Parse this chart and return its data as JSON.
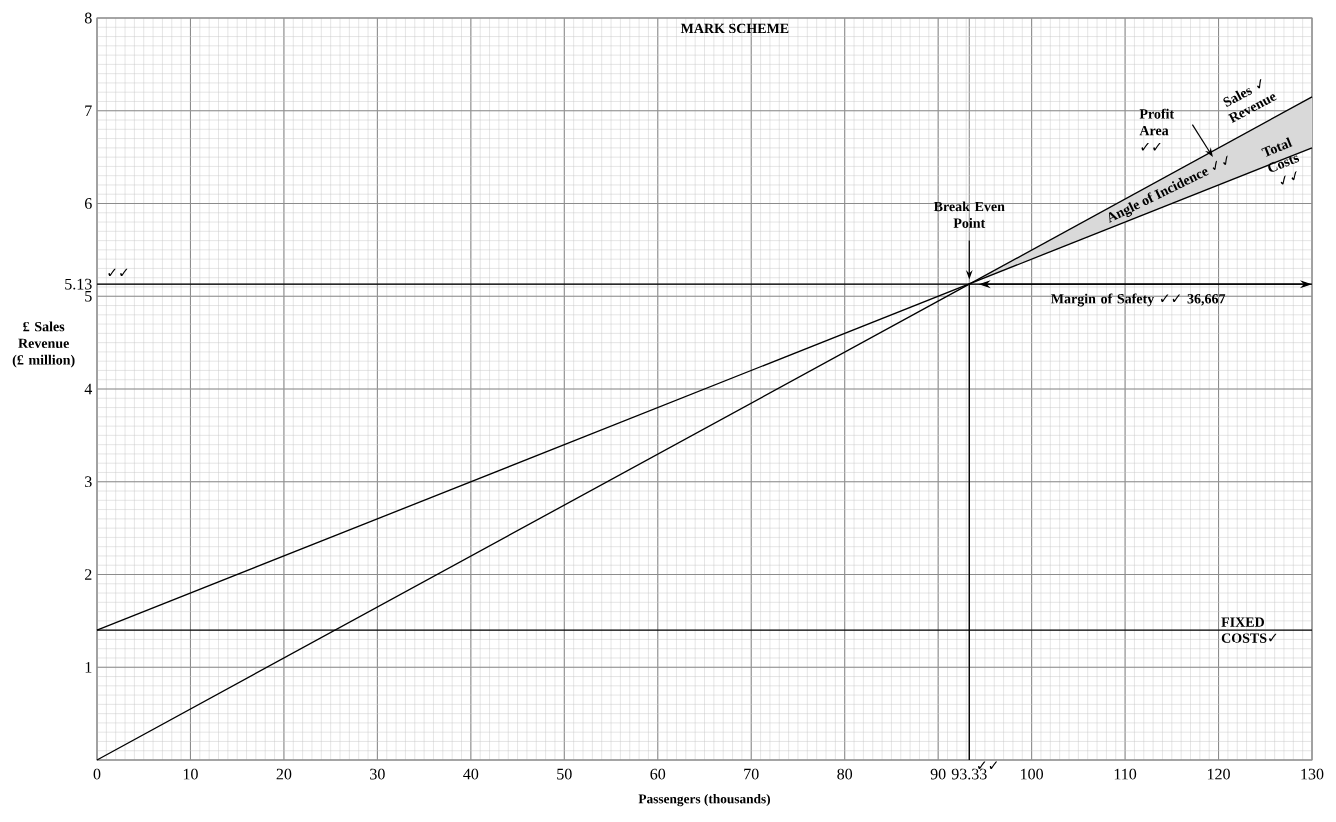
{
  "chart_data": {
    "type": "line",
    "title": "MARK SCHEME",
    "xlabel": "Passengers  (thousands)",
    "ylabel": "£ Sales Revenue (£ million)",
    "series": [
      {
        "color": "#000000",
        "x": [
          0,
          93.33,
          130
        ],
        "values": [
          0,
          5.13,
          7.15
        ],
        "lower": [
          null,
          5.13,
          6.6
        ],
        "upper": [
          null,
          5.13,
          7.15
        ]
      },
      {
        "color": "#000000",
        "x": [
          0,
          130
        ],
        "values": [
          1.4,
          6.6
        ]
      }
    ],
    "xlim": [
      0,
      130
    ],
    "ylim": [
      0,
      8
    ],
    "xticks": [
      0,
      10,
      20,
      30,
      40,
      50,
      60,
      70,
      80,
      90,
      93.33,
      100,
      110,
      120,
      130
    ],
    "yticks": [
      {
        "value": 0,
        "label": null
      },
      1,
      2,
      3,
      4,
      5,
      5.13,
      6,
      7,
      8
    ],
    "grid": true,
    "ref_lines": [
      {
        "axis": "y",
        "value": 1.4,
        "label": "FIXED COSTS✓",
        "color": "#000000"
      },
      {
        "axis": "y",
        "value": 5.13,
        "color": "#000000"
      },
      {
        "axis": "x",
        "value": 93.33,
        "color": "#000000"
      }
    ],
    "annotations": [
      "Sales ✓ Revenue",
      "Profit Area ✓✓",
      "Angle of Incidence ✓✓",
      "Total Costs ✓✓",
      "Break Even Point",
      "Margin of Safety ✓✓ 36,667",
      "✓✓",
      "✓✓"
    ]
  }
}
